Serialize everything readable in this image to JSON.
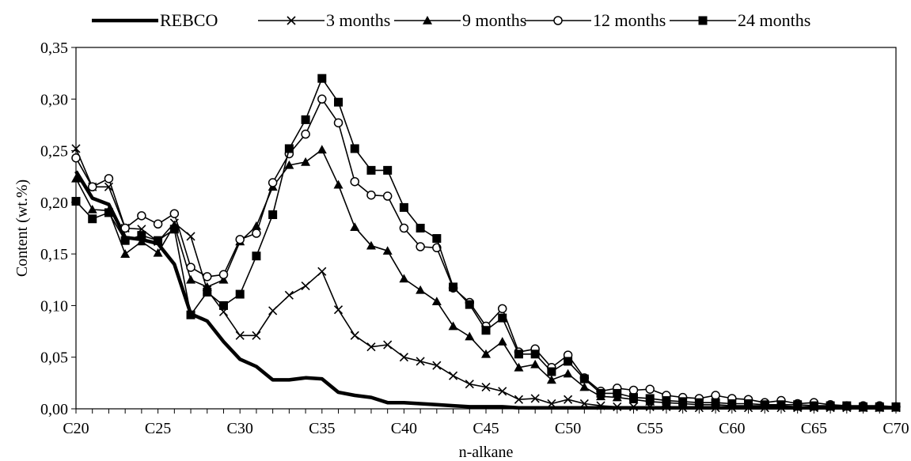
{
  "chart_data": {
    "type": "line",
    "xlabel": "n-alkane",
    "ylabel": "Content (wt.%)",
    "x_tick_labels": [
      "C20",
      "C25",
      "C30",
      "C35",
      "C40",
      "C45",
      "C50",
      "C55",
      "C60",
      "C65",
      "C70"
    ],
    "y_tick_labels": [
      "0,00",
      "0,05",
      "0,10",
      "0,15",
      "0,20",
      "0,25",
      "0,30",
      "0,35"
    ],
    "ylim": [
      0,
      0.35
    ],
    "xlim": [
      20,
      70
    ],
    "legend_position": "top",
    "grid": false,
    "series": [
      {
        "name": "REBCO",
        "marker": "none",
        "x": [
          20,
          21,
          22,
          23,
          24,
          25,
          26,
          27,
          28,
          29,
          30,
          31,
          32,
          33,
          34,
          35,
          36,
          37,
          38,
          39,
          40,
          41,
          42,
          43,
          44,
          45,
          46,
          47,
          48,
          49,
          50,
          51,
          52,
          53,
          54,
          55,
          56,
          57,
          58,
          59,
          60,
          61,
          62,
          63,
          64,
          65,
          66,
          67,
          68,
          69,
          70
        ],
        "values": [
          0.23,
          0.204,
          0.198,
          0.166,
          0.164,
          0.16,
          0.14,
          0.092,
          0.085,
          0.065,
          0.048,
          0.041,
          0.028,
          0.028,
          0.03,
          0.029,
          0.016,
          0.013,
          0.011,
          0.006,
          0.006,
          0.005,
          0.004,
          0.003,
          0.002,
          0.002,
          0.002,
          0.001,
          0.001,
          0.001,
          0.001,
          0.001,
          0.001,
          0.001,
          0.001,
          0.001,
          0.001,
          0.001,
          0.001,
          0.001,
          0.001,
          0.001,
          0.001,
          0.001,
          0.001,
          0.001,
          0.001,
          0.001,
          0.001,
          0.001,
          0.001
        ]
      },
      {
        "name": "3 months",
        "marker": "x",
        "x": [
          20,
          21,
          22,
          23,
          24,
          25,
          26,
          27,
          28,
          29,
          30,
          31,
          32,
          33,
          34,
          35,
          36,
          37,
          38,
          39,
          40,
          41,
          42,
          43,
          44,
          45,
          46,
          47,
          48,
          49,
          50,
          51,
          52,
          53,
          54,
          55,
          56,
          57,
          58,
          59,
          60,
          61,
          62,
          63,
          64,
          65,
          66,
          67,
          68,
          69,
          70
        ],
        "values": [
          0.252,
          0.215,
          0.215,
          0.175,
          0.174,
          0.162,
          0.18,
          0.167,
          0.115,
          0.094,
          0.071,
          0.071,
          0.095,
          0.11,
          0.119,
          0.133,
          0.096,
          0.071,
          0.06,
          0.062,
          0.05,
          0.046,
          0.042,
          0.032,
          0.024,
          0.021,
          0.017,
          0.009,
          0.01,
          0.005,
          0.009,
          0.005,
          0.003,
          0.002,
          0.002,
          0.002,
          0.002,
          0.001,
          0.001,
          0.001,
          0.001,
          0.001,
          0.001,
          0.001,
          0.001,
          0.001,
          0.001,
          0.001,
          0.001,
          0.001,
          0.001
        ]
      },
      {
        "name": "9 months",
        "marker": "triangle",
        "x": [
          20,
          21,
          22,
          23,
          24,
          25,
          26,
          27,
          28,
          29,
          30,
          31,
          32,
          33,
          34,
          35,
          36,
          37,
          38,
          39,
          40,
          41,
          42,
          43,
          44,
          45,
          46,
          47,
          48,
          49,
          50,
          51,
          52,
          53,
          54,
          55,
          56,
          57,
          58,
          59,
          60,
          61,
          62,
          63,
          64,
          65,
          66,
          67,
          68,
          69,
          70
        ],
        "values": [
          0.223,
          0.193,
          0.192,
          0.15,
          0.162,
          0.151,
          0.178,
          0.125,
          0.118,
          0.125,
          0.162,
          0.177,
          0.215,
          0.236,
          0.239,
          0.251,
          0.217,
          0.176,
          0.158,
          0.153,
          0.126,
          0.115,
          0.104,
          0.08,
          0.07,
          0.053,
          0.065,
          0.04,
          0.043,
          0.028,
          0.034,
          0.021,
          0.012,
          0.011,
          0.009,
          0.007,
          0.006,
          0.005,
          0.004,
          0.004,
          0.003,
          0.003,
          0.003,
          0.003,
          0.002,
          0.002,
          0.002,
          0.002,
          0.001,
          0.001,
          0.001
        ]
      },
      {
        "name": "12 months",
        "marker": "circle",
        "x": [
          20,
          21,
          22,
          23,
          24,
          25,
          26,
          27,
          28,
          29,
          30,
          31,
          32,
          33,
          34,
          35,
          36,
          37,
          38,
          39,
          40,
          41,
          42,
          43,
          44,
          45,
          46,
          47,
          48,
          49,
          50,
          51,
          52,
          53,
          54,
          55,
          56,
          57,
          58,
          59,
          60,
          61,
          62,
          63,
          64,
          65,
          66,
          67,
          68,
          69,
          70
        ],
        "values": [
          0.243,
          0.215,
          0.223,
          0.175,
          0.187,
          0.179,
          0.189,
          0.137,
          0.128,
          0.13,
          0.164,
          0.17,
          0.219,
          0.247,
          0.266,
          0.3,
          0.277,
          0.22,
          0.207,
          0.206,
          0.175,
          0.157,
          0.156,
          0.117,
          0.103,
          0.08,
          0.097,
          0.055,
          0.058,
          0.04,
          0.052,
          0.03,
          0.017,
          0.02,
          0.018,
          0.019,
          0.013,
          0.011,
          0.01,
          0.013,
          0.01,
          0.009,
          0.006,
          0.008,
          0.005,
          0.006,
          0.004,
          0.003,
          0.003,
          0.003,
          0.002
        ]
      },
      {
        "name": "24 months",
        "marker": "square",
        "x": [
          20,
          21,
          22,
          23,
          24,
          25,
          26,
          27,
          28,
          29,
          30,
          31,
          32,
          33,
          34,
          35,
          36,
          37,
          38,
          39,
          40,
          41,
          42,
          43,
          44,
          45,
          46,
          47,
          48,
          49,
          50,
          51,
          52,
          53,
          54,
          55,
          56,
          57,
          58,
          59,
          60,
          61,
          62,
          63,
          64,
          65,
          66,
          67,
          68,
          69,
          70
        ],
        "values": [
          0.201,
          0.184,
          0.19,
          0.163,
          0.168,
          0.163,
          0.174,
          0.091,
          0.113,
          0.1,
          0.111,
          0.148,
          0.188,
          0.252,
          0.28,
          0.32,
          0.297,
          0.252,
          0.231,
          0.231,
          0.195,
          0.175,
          0.165,
          0.118,
          0.101,
          0.076,
          0.088,
          0.053,
          0.053,
          0.036,
          0.046,
          0.029,
          0.015,
          0.015,
          0.011,
          0.01,
          0.008,
          0.007,
          0.006,
          0.006,
          0.005,
          0.005,
          0.004,
          0.004,
          0.004,
          0.003,
          0.003,
          0.003,
          0.002,
          0.002,
          0.002
        ]
      }
    ]
  }
}
